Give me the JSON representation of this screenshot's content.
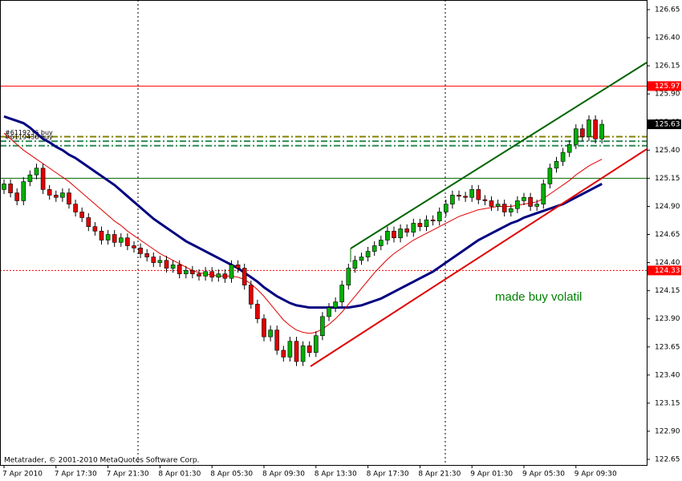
{
  "chart_data": {
    "type": "candlestick",
    "annotation": "made buy volatil",
    "copyright": "Metatrader, © 2001-2010 MetaQuotes Software Corp.",
    "categories": [
      "7 Apr 2010",
      null,
      null,
      null,
      null,
      null,
      null,
      null,
      "7 Apr 17:30",
      null,
      null,
      null,
      null,
      null,
      null,
      null,
      "7 Apr 21:30",
      null,
      null,
      null,
      null,
      null,
      null,
      null,
      "8 Apr 01:30",
      null,
      null,
      null,
      null,
      null,
      null,
      null,
      "8 Apr 05:30",
      null,
      null,
      null,
      null,
      null,
      null,
      null,
      "8 Apr 09:30",
      null,
      null,
      null,
      null,
      null,
      null,
      null,
      "8 Apr 13:30",
      null,
      null,
      null,
      null,
      null,
      null,
      null,
      "8 Apr 17:30",
      null,
      null,
      null,
      null,
      null,
      null,
      null,
      "8 Apr 21:30",
      null,
      null,
      null,
      null,
      null,
      null,
      null,
      "9 Apr 01:30",
      null,
      null,
      null,
      null,
      null,
      null,
      null,
      "9 Apr 05:30",
      null,
      null,
      null,
      null,
      null,
      null,
      null,
      "9 Apr 09:30",
      null,
      null,
      null,
      null
    ],
    "open": [
      125.05,
      125.1,
      125.02,
      124.95,
      125.12,
      125.18,
      125.24,
      125.05,
      125.0,
      124.98,
      125.02,
      124.92,
      124.85,
      124.8,
      124.72,
      124.68,
      124.6,
      124.65,
      124.58,
      124.62,
      124.55,
      124.53,
      124.48,
      124.45,
      124.4,
      124.42,
      124.35,
      124.38,
      124.3,
      124.33,
      124.3,
      124.28,
      124.32,
      124.27,
      124.3,
      124.26,
      124.38,
      124.35,
      124.2,
      124.03,
      123.9,
      123.74,
      123.8,
      123.62,
      123.56,
      123.7,
      123.52,
      123.66,
      123.6,
      123.75,
      123.92,
      124.0,
      124.05,
      124.2,
      124.35,
      124.42,
      124.45,
      124.5,
      124.55,
      124.6,
      124.68,
      124.62,
      124.7,
      124.67,
      124.75,
      124.72,
      124.78,
      124.77,
      124.85,
      124.92,
      125.0,
      124.99,
      124.98,
      125.05,
      124.96,
      124.95,
      124.9,
      124.92,
      124.85,
      124.88,
      124.95,
      124.98,
      124.9,
      124.92,
      125.1,
      125.24,
      125.3,
      125.38,
      125.45,
      125.59,
      125.52,
      125.67,
      125.5
    ],
    "high": [
      125.14,
      125.14,
      125.06,
      125.16,
      125.22,
      125.28,
      125.28,
      125.09,
      125.04,
      125.06,
      125.06,
      124.96,
      124.89,
      124.84,
      124.76,
      124.72,
      124.69,
      124.69,
      124.66,
      124.66,
      124.59,
      124.57,
      124.52,
      124.49,
      124.46,
      124.46,
      124.42,
      124.42,
      124.37,
      124.37,
      124.34,
      124.36,
      124.36,
      124.34,
      124.34,
      124.42,
      124.42,
      124.39,
      124.24,
      124.07,
      123.94,
      123.84,
      123.84,
      123.66,
      123.74,
      123.74,
      123.7,
      123.7,
      123.79,
      123.96,
      124.04,
      124.09,
      124.24,
      124.39,
      124.46,
      124.49,
      124.54,
      124.59,
      124.64,
      124.72,
      124.72,
      124.74,
      124.74,
      124.79,
      124.79,
      124.82,
      124.82,
      124.89,
      124.96,
      125.04,
      125.04,
      125.03,
      125.09,
      125.09,
      125.0,
      124.99,
      124.96,
      124.96,
      124.92,
      124.99,
      125.02,
      125.02,
      124.96,
      125.14,
      125.28,
      125.34,
      125.42,
      125.49,
      125.63,
      125.63,
      125.71,
      125.71,
      125.67
    ],
    "low": [
      125.01,
      124.98,
      124.91,
      124.91,
      125.08,
      125.14,
      125.01,
      124.96,
      124.94,
      124.94,
      124.88,
      124.81,
      124.76,
      124.68,
      124.64,
      124.56,
      124.56,
      124.54,
      124.54,
      124.51,
      124.49,
      124.44,
      124.41,
      124.36,
      124.36,
      124.31,
      124.31,
      124.26,
      124.26,
      124.26,
      124.24,
      124.24,
      124.23,
      124.23,
      124.22,
      124.22,
      124.31,
      124.16,
      123.99,
      123.86,
      123.7,
      123.7,
      123.58,
      123.52,
      123.52,
      123.48,
      123.48,
      123.56,
      123.56,
      123.71,
      123.88,
      123.96,
      124.01,
      124.16,
      124.31,
      124.38,
      124.41,
      124.46,
      124.51,
      124.56,
      124.58,
      124.58,
      124.63,
      124.63,
      124.68,
      124.68,
      124.73,
      124.73,
      124.81,
      124.88,
      124.95,
      124.94,
      124.94,
      124.92,
      124.91,
      124.86,
      124.86,
      124.81,
      124.81,
      124.84,
      124.91,
      124.86,
      124.86,
      124.88,
      125.06,
      125.2,
      125.26,
      125.34,
      125.41,
      125.48,
      125.48,
      125.46,
      125.46
    ],
    "close": [
      125.1,
      125.02,
      124.95,
      125.12,
      125.18,
      125.24,
      125.05,
      125.0,
      124.98,
      125.02,
      124.92,
      124.85,
      124.8,
      124.72,
      124.68,
      124.6,
      124.65,
      124.58,
      124.62,
      124.55,
      124.53,
      124.48,
      124.45,
      124.4,
      124.42,
      124.35,
      124.38,
      124.3,
      124.33,
      124.3,
      124.28,
      124.32,
      124.27,
      124.3,
      124.26,
      124.38,
      124.35,
      124.2,
      124.03,
      123.9,
      123.74,
      123.8,
      123.62,
      123.56,
      123.7,
      123.52,
      123.66,
      123.6,
      123.75,
      123.92,
      124.0,
      124.05,
      124.2,
      124.35,
      124.42,
      124.45,
      124.5,
      124.55,
      124.6,
      124.68,
      124.62,
      124.7,
      124.67,
      124.75,
      124.72,
      124.78,
      124.77,
      124.85,
      124.92,
      125.0,
      124.99,
      124.98,
      125.05,
      124.96,
      124.95,
      124.9,
      124.92,
      124.85,
      124.88,
      124.95,
      124.98,
      124.9,
      124.92,
      125.1,
      125.24,
      125.3,
      125.38,
      125.45,
      125.59,
      125.52,
      125.67,
      125.5,
      125.63
    ],
    "up_color": "#00b000",
    "down_color": "#e00000",
    "indicators": [
      {
        "color": "#000080",
        "width": 3,
        "values": [
          125.7,
          125.68,
          125.66,
          125.64,
          125.6,
          125.55,
          125.5,
          125.47,
          125.43,
          125.4,
          125.36,
          125.33,
          125.29,
          125.25,
          125.21,
          125.17,
          125.13,
          125.09,
          125.04,
          124.99,
          124.94,
          124.89,
          124.84,
          124.79,
          124.75,
          124.71,
          124.67,
          124.63,
          124.59,
          124.56,
          124.53,
          124.5,
          124.47,
          124.44,
          124.41,
          124.38,
          124.35,
          124.31,
          124.27,
          124.23,
          124.18,
          124.14,
          124.1,
          124.07,
          124.04,
          124.02,
          124.01,
          124.0,
          124.0,
          124.0,
          124.0,
          124.0,
          124.0,
          124.0,
          124.01,
          124.02,
          124.04,
          124.06,
          124.08,
          124.11,
          124.14,
          124.17,
          124.2,
          124.23,
          124.26,
          124.29,
          124.32,
          124.36,
          124.4,
          124.44,
          124.48,
          124.52,
          124.56,
          124.6,
          124.63,
          124.66,
          124.69,
          124.72,
          124.75,
          124.77,
          124.8,
          124.82,
          124.84,
          124.86,
          124.88,
          124.9,
          124.92,
          124.95,
          124.98,
          125.01,
          125.04,
          125.07,
          125.1
        ]
      },
      {
        "color": "#e00000",
        "width": 1,
        "values": [
          125.55,
          125.5,
          125.45,
          125.4,
          125.36,
          125.32,
          125.28,
          125.24,
          125.2,
          125.16,
          125.12,
          125.07,
          125.02,
          124.97,
          124.92,
          124.87,
          124.82,
          124.77,
          124.73,
          124.68,
          124.64,
          124.6,
          124.56,
          124.52,
          124.48,
          124.45,
          124.42,
          124.39,
          124.36,
          124.33,
          124.31,
          124.3,
          124.29,
          124.28,
          124.28,
          124.28,
          124.27,
          124.25,
          124.21,
          124.16,
          124.1,
          124.03,
          123.96,
          123.89,
          123.84,
          123.8,
          123.78,
          123.77,
          123.78,
          123.81,
          123.85,
          123.9,
          123.96,
          124.03,
          124.1,
          124.17,
          124.24,
          124.31,
          124.37,
          124.43,
          124.48,
          124.52,
          124.56,
          124.6,
          124.63,
          124.66,
          124.69,
          124.72,
          124.75,
          124.78,
          124.81,
          124.83,
          124.85,
          124.87,
          124.88,
          124.89,
          124.9,
          124.9,
          124.9,
          124.91,
          124.92,
          124.93,
          124.94,
          124.97,
          125.01,
          125.05,
          125.09,
          125.13,
          125.18,
          125.22,
          125.26,
          125.29,
          125.32
        ]
      }
    ],
    "hlines": [
      {
        "value": 125.97,
        "color": "#ff0000",
        "dash": "none",
        "tagged": true
      },
      {
        "value": 125.15,
        "color": "#006400",
        "dash": "none",
        "tagged": false
      },
      {
        "value": 124.33,
        "color": "#ff0000",
        "dash": "2 2",
        "tagged": true
      }
    ],
    "orders": [
      {
        "label": "#6119236 buy",
        "value": 125.52,
        "color": "#808000"
      },
      {
        "label": "#6119436 buy",
        "value": 125.48,
        "color": "#2e8b57"
      },
      {
        "value": 125.44,
        "color": "#2e8b57"
      }
    ],
    "bid": 125.63,
    "ylim": [
      122.65,
      126.65
    ],
    "yticks": [
      122.65,
      {
        "value": 122.9,
        "label": "122.90"
      },
      123.15,
      {
        "value": 123.4,
        "label": "123.40"
      },
      123.65,
      {
        "value": 123.9,
        "label": "123.90"
      },
      124.15,
      {
        "value": 124.4,
        "label": "124.40"
      },
      124.65,
      {
        "value": 124.9,
        "label": "124.90"
      },
      125.15,
      {
        "value": 125.4,
        "label": "125.40"
      },
      125.65,
      {
        "value": 125.9,
        "label": "125.90"
      },
      126.15,
      {
        "value": 126.4,
        "label": "126.40"
      },
      126.65
    ]
  }
}
